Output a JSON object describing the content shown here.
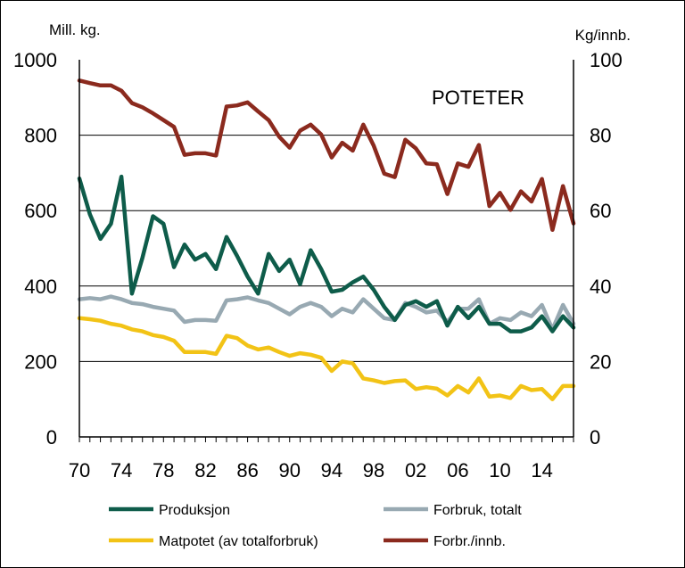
{
  "chart_data": {
    "type": "line",
    "title": "POTETER",
    "ylabel_left": "Mill. kg.",
    "ylabel_right": "Kg/innb.",
    "ylim_left": [
      0,
      1000
    ],
    "ylim_right": [
      0,
      100
    ],
    "yticks_left": [
      "0",
      "200",
      "400",
      "600",
      "800",
      "1000"
    ],
    "yticks_right": [
      "0",
      "20",
      "40",
      "60",
      "80",
      "100"
    ],
    "xlim": [
      1970,
      2017
    ],
    "xtick_labels": [
      "70",
      "74",
      "78",
      "82",
      "86",
      "90",
      "94",
      "98",
      "02",
      "06",
      "10",
      "14"
    ],
    "grid": "horizontal",
    "legend": "bottom",
    "x": [
      1970,
      1971,
      1972,
      1973,
      1974,
      1975,
      1976,
      1977,
      1978,
      1979,
      1980,
      1981,
      1982,
      1983,
      1984,
      1985,
      1986,
      1987,
      1988,
      1989,
      1990,
      1991,
      1992,
      1993,
      1994,
      1995,
      1996,
      1997,
      1998,
      1999,
      2000,
      2001,
      2002,
      2003,
      2004,
      2005,
      2006,
      2007,
      2008,
      2009,
      2010,
      2011,
      2012,
      2013,
      2014,
      2015,
      2016,
      2017
    ],
    "series": [
      {
        "name": "Produksjon",
        "axis": "left",
        "color": "#0e5c4a",
        "values": [
          685,
          590,
          525,
          565,
          690,
          380,
          475,
          585,
          565,
          450,
          510,
          470,
          485,
          445,
          530,
          480,
          425,
          380,
          485,
          440,
          470,
          405,
          495,
          445,
          385,
          390,
          410,
          425,
          390,
          345,
          310,
          350,
          360,
          345,
          360,
          295,
          345,
          315,
          345,
          300,
          300,
          280,
          280,
          290,
          320,
          280,
          320,
          290
        ]
      },
      {
        "name": "Forbruk, totalt",
        "axis": "left",
        "color": "#98a9b2",
        "values": [
          365,
          368,
          365,
          372,
          365,
          355,
          352,
          345,
          340,
          335,
          305,
          310,
          310,
          308,
          362,
          365,
          370,
          362,
          355,
          340,
          325,
          345,
          355,
          345,
          320,
          340,
          330,
          365,
          340,
          315,
          310,
          355,
          345,
          330,
          335,
          305,
          340,
          340,
          365,
          300,
          315,
          310,
          330,
          320,
          350,
          285,
          350,
          300
        ]
      },
      {
        "name": "Matpotet (av totalforbruk)",
        "axis": "left",
        "color": "#f2c316",
        "values": [
          315,
          312,
          308,
          300,
          295,
          285,
          280,
          270,
          265,
          255,
          225,
          225,
          225,
          220,
          268,
          262,
          242,
          232,
          237,
          225,
          215,
          222,
          218,
          210,
          175,
          200,
          195,
          155,
          150,
          143,
          148,
          150,
          127,
          132,
          128,
          110,
          135,
          118,
          155,
          107,
          110,
          103,
          135,
          124,
          127,
          100,
          135,
          135
        ]
      },
      {
        "name": "Forbr./innb.",
        "axis": "right",
        "color": "#8b2a1e",
        "values": [
          94.5,
          93.8,
          93.2,
          93.2,
          91.8,
          88.5,
          87.4,
          85.8,
          84,
          82.2,
          74.8,
          75.2,
          75.2,
          74.6,
          87.6,
          87.9,
          88.7,
          86.3,
          84,
          79.6,
          76.7,
          81.2,
          82.8,
          80.2,
          74.1,
          78,
          75.9,
          82.8,
          77.2,
          69.8,
          68.9,
          78.8,
          76.5,
          72.5,
          72.3,
          64.4,
          72.5,
          71.6,
          77.4,
          61.2,
          64.7,
          60.2,
          65.1,
          62.4,
          68.4,
          54.9,
          66.5,
          56.6
        ]
      }
    ]
  }
}
